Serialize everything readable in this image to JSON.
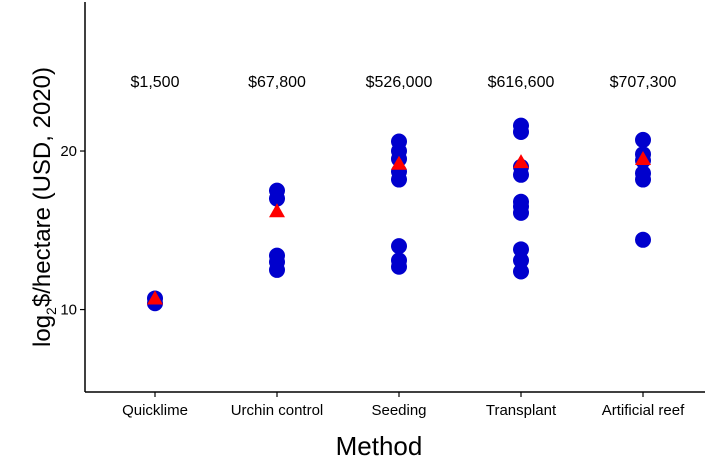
{
  "chart_data": {
    "type": "scatter",
    "xlabel": "Method",
    "ylabel_prefix": "log",
    "ylabel_sub": "2",
    "ylabel_suffix": "$/hectare (USD, 2020)",
    "ylim": [
      4.8,
      29.4
    ],
    "yticks": [
      10,
      20
    ],
    "grid": false,
    "legend": "none",
    "categories": [
      "Quicklime",
      "Urchin control",
      "Seeding",
      "Transplant",
      "Artificial reef"
    ],
    "cost_labels": [
      "$1,500",
      "$67,800",
      "$526,000",
      "$616,600",
      "$707,300"
    ],
    "series": [
      {
        "kind": "observations",
        "color": "#0000CD",
        "marker": "circle",
        "values": [
          [
            10.7,
            10.4
          ],
          [
            17.5,
            17.0,
            13.4,
            13.0,
            12.5
          ],
          [
            20.6,
            20.0,
            19.5,
            18.7,
            18.2,
            14.0,
            13.1,
            12.7
          ],
          [
            21.6,
            21.2,
            19.0,
            18.5,
            16.8,
            16.5,
            16.1,
            13.8,
            13.1,
            12.4
          ],
          [
            20.7,
            19.8,
            19.4,
            18.6,
            18.2,
            14.4
          ]
        ]
      },
      {
        "kind": "mean",
        "color": "#FF0000",
        "marker": "triangle",
        "values": [
          10.7,
          16.2,
          19.2,
          19.3,
          19.5
        ]
      }
    ]
  }
}
